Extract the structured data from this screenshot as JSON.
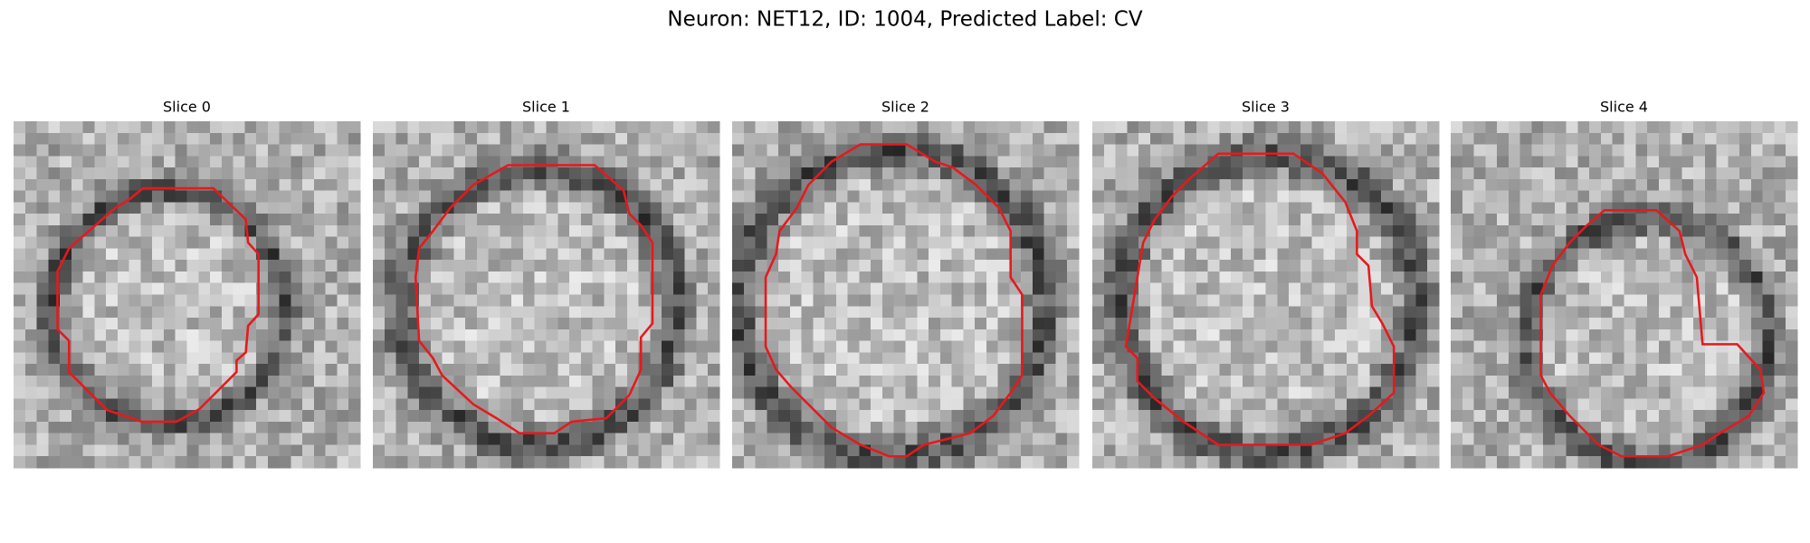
{
  "title": "Neuron: NET12, ID: 1004, Predicted Label: CV",
  "panels": [
    {
      "title": "Slice 0"
    },
    {
      "title": "Slice 1"
    },
    {
      "title": "Slice 2"
    },
    {
      "title": "Slice 3"
    },
    {
      "title": "Slice 4"
    }
  ]
}
